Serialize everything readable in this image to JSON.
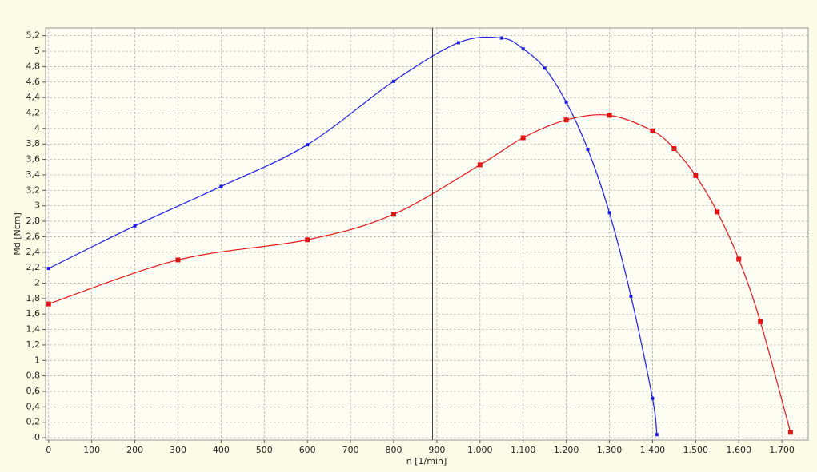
{
  "chart_data": {
    "type": "line",
    "x_label": "n [1/min]",
    "y_label": "Md [Ncm]",
    "xlim": [
      -7,
      1761
    ],
    "ylim": [
      -0.03,
      5.3
    ],
    "xticks": [
      0,
      100,
      200,
      300,
      400,
      500,
      600,
      700,
      800,
      900,
      {
        "value": 1000,
        "label": "1.000"
      },
      {
        "value": 1100,
        "label": "1.100"
      },
      {
        "value": 1200,
        "label": "1.200"
      },
      {
        "value": 1300,
        "label": "1.300"
      },
      {
        "value": 1400,
        "label": "1.400"
      },
      {
        "value": 1500,
        "label": "1.500"
      },
      {
        "value": 1600,
        "label": "1.600"
      },
      {
        "value": 1700,
        "label": "1.700"
      }
    ],
    "yticks": [
      0,
      {
        "value": 0.2,
        "label": "0,2"
      },
      {
        "value": 0.4,
        "label": "0,4"
      },
      {
        "value": 0.6,
        "label": "0,6"
      },
      {
        "value": 0.8,
        "label": "0,8"
      },
      1,
      {
        "value": 1.2,
        "label": "1,2"
      },
      {
        "value": 1.4,
        "label": "1,4"
      },
      {
        "value": 1.6,
        "label": "1,6"
      },
      {
        "value": 1.8,
        "label": "1,8"
      },
      2,
      {
        "value": 2.2,
        "label": "2,2"
      },
      {
        "value": 2.4,
        "label": "2,4"
      },
      {
        "value": 2.6,
        "label": "2,6"
      },
      {
        "value": 2.8,
        "label": "2,8"
      },
      3,
      {
        "value": 3.2,
        "label": "3,2"
      },
      {
        "value": 3.4,
        "label": "3,4"
      },
      {
        "value": 3.6,
        "label": "3,6"
      },
      {
        "value": 3.8,
        "label": "3,8"
      },
      4,
      {
        "value": 4.2,
        "label": "4,2"
      },
      {
        "value": 4.4,
        "label": "4,4"
      },
      {
        "value": 4.6,
        "label": "4,6"
      },
      {
        "value": 4.8,
        "label": "4,8"
      },
      5,
      {
        "value": 5.2,
        "label": "5,2"
      }
    ],
    "grid": true,
    "crosshair": {
      "x": 890,
      "y": 2.66
    },
    "series": [
      {
        "color": "#1c1ce0",
        "marker_size": 4,
        "x": [
          0,
          200,
          400,
          600,
          800,
          950,
          1050,
          1100,
          1150,
          1200,
          1250,
          1300,
          1350,
          1400,
          1410
        ],
        "values": [
          2.19,
          2.74,
          3.25,
          3.79,
          4.61,
          5.11,
          5.17,
          5.03,
          4.78,
          4.34,
          3.73,
          2.91,
          1.83,
          0.51,
          0.04
        ]
      },
      {
        "color": "#e01414",
        "marker_size": 6,
        "x": [
          0,
          300,
          600,
          800,
          1000,
          1100,
          1200,
          1300,
          1400,
          1450,
          1500,
          1550,
          1600,
          1650,
          1720
        ],
        "values": [
          1.73,
          2.3,
          2.56,
          2.89,
          3.53,
          3.88,
          4.11,
          4.17,
          3.97,
          3.74,
          3.39,
          2.92,
          2.31,
          1.5,
          0.07
        ]
      }
    ]
  }
}
